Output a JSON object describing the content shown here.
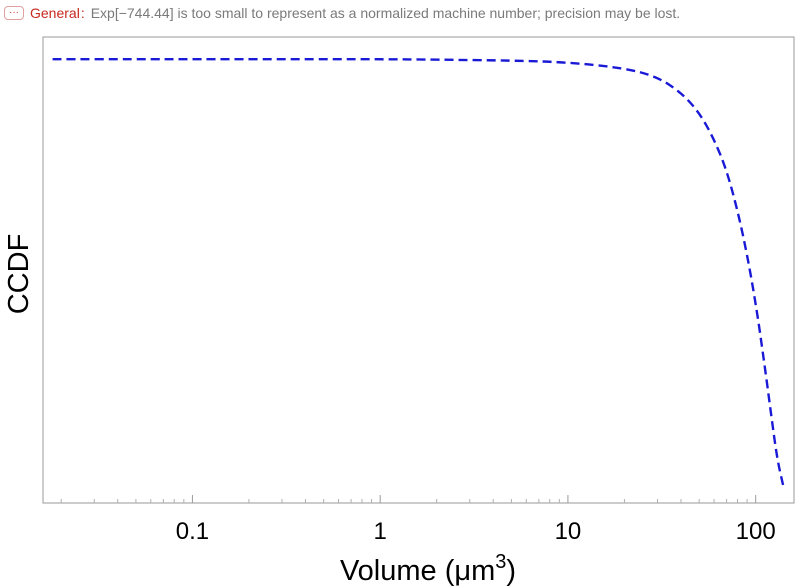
{
  "message": {
    "icon": "ellipsis-icon",
    "label": "General",
    "text": "Exp[−744.44] is too small to represent as a normalized machine number; precision may be lost.",
    "label_color": "#c8281e"
  },
  "chart_data": {
    "type": "line",
    "x_scale": "log",
    "xlim": [
      0.016,
      160
    ],
    "ylim": [
      0,
      1.05
    ],
    "x_ticks": [
      {
        "value": 0.1,
        "label": "0.1"
      },
      {
        "value": 1,
        "label": "1"
      },
      {
        "value": 10,
        "label": "10"
      },
      {
        "value": 100,
        "label": "100"
      }
    ],
    "y_ticks": [],
    "xlabel": "Volume (μm",
    "xlabel_sup": "3",
    "xlabel_end": ")",
    "ylabel": "CCDF",
    "grid": false,
    "series": [
      {
        "color": "#1a1ad6",
        "dash": "dashed",
        "x": [
          0.018,
          0.05,
          0.1,
          0.5,
          1,
          2,
          5,
          10,
          20,
          30,
          40,
          50,
          60,
          70,
          80,
          90,
          100,
          110,
          120,
          130,
          140
        ],
        "y": [
          1.0,
          1.0,
          1.0,
          1.0,
          1.0,
          0.999,
          0.997,
          0.993,
          0.98,
          0.96,
          0.925,
          0.88,
          0.82,
          0.75,
          0.66,
          0.56,
          0.45,
          0.33,
          0.21,
          0.1,
          0.04
        ]
      }
    ]
  }
}
